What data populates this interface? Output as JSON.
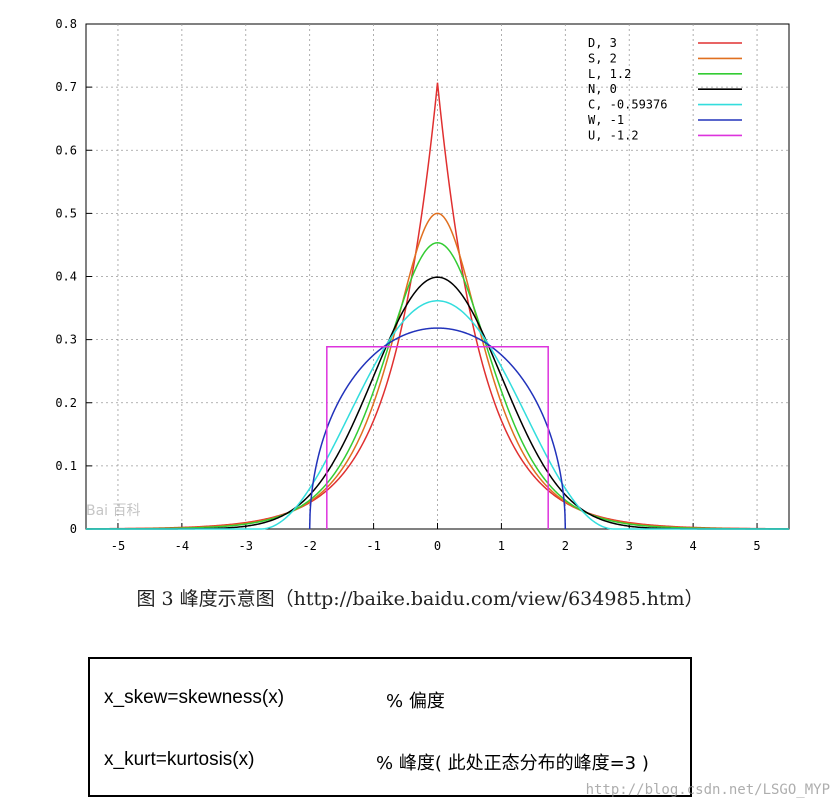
{
  "chart_data": {
    "type": "line",
    "xlim": [
      -5.5,
      5.5
    ],
    "ylim": [
      0,
      0.8
    ],
    "x_ticks": [
      "-5",
      "-4",
      "-3",
      "-2",
      "-1",
      "0",
      "1",
      "2",
      "3",
      "4",
      "5"
    ],
    "y_ticks": [
      "0",
      "0.1",
      "0.2",
      "0.3",
      "0.4",
      "0.5",
      "0.6",
      "0.7",
      "0.8"
    ],
    "grid": true,
    "legend_position": "top-right",
    "series": [
      {
        "key": "D",
        "name": "D,  3",
        "distribution": "laplace",
        "peak": 0.7071,
        "color": "#e03030"
      },
      {
        "key": "S",
        "name": "S,  2",
        "distribution": "hyperbolic-secant",
        "peak": 0.5,
        "color": "#e07020"
      },
      {
        "key": "L",
        "name": "L,  1.2",
        "distribution": "logistic",
        "peak": 0.4534,
        "color": "#33cc33"
      },
      {
        "key": "N",
        "name": "N,  0",
        "distribution": "normal",
        "peak": 0.3989,
        "color": "#000000"
      },
      {
        "key": "C",
        "name": "C, -0.59376",
        "distribution": "raised-cosine",
        "peak": 0.3624,
        "color": "#33dddd"
      },
      {
        "key": "W",
        "name": "W, -1",
        "distribution": "semicircle",
        "peak": 0.3183,
        "color": "#2233bb"
      },
      {
        "key": "U",
        "name": "U, -1.2",
        "distribution": "uniform",
        "peak": 0.2887,
        "color": "#dd33dd"
      }
    ]
  },
  "watermark": "Bai 百科",
  "caption": "图 3 峰度示意图（http://baike.baidu.com/view/634985.htm）",
  "code_box": {
    "line1_code": "x_skew=skewness(x)",
    "line1_comment": "% 偏度",
    "line2_code": "x_kurt=kurtosis(x)",
    "line2_comment": "% 峰度( 此处正态分布的峰度=3 )"
  },
  "url_watermark": "http://blog.csdn.net/LSGO_MYP"
}
